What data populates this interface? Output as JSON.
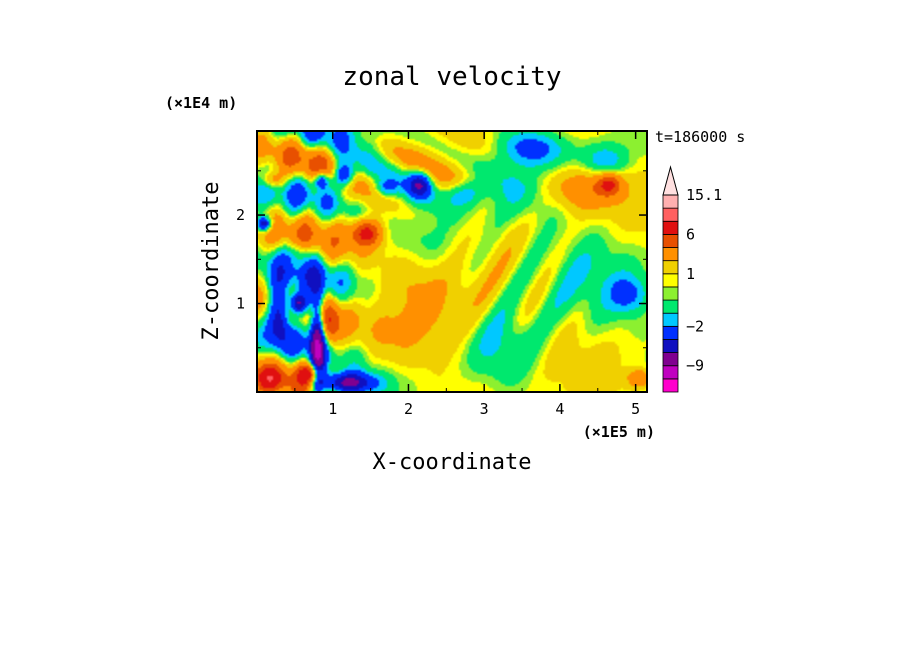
{
  "chart_data": {
    "type": "heatmap",
    "title": "zonal velocity",
    "xlabel": "X-coordinate",
    "ylabel": "Z-coordinate",
    "x_unit": "(×1E5 m)",
    "y_unit": "(×1E4 m)",
    "timestamp": "t=186000 s",
    "xlim": [
      0,
      5.15
    ],
    "ylim": [
      0,
      2.95
    ],
    "x_ticks": [
      {
        "value": 1,
        "label": "1"
      },
      {
        "value": 2,
        "label": "2"
      },
      {
        "value": 3,
        "label": "3"
      },
      {
        "value": 4,
        "label": "4"
      },
      {
        "value": 5,
        "label": "5"
      }
    ],
    "y_ticks": [
      {
        "value": 1,
        "label": "1"
      },
      {
        "value": 2,
        "label": "2"
      }
    ],
    "colorbar": {
      "levels": [
        -15.1,
        -12,
        -9,
        -6,
        -4,
        -2,
        -1,
        0,
        0.5,
        1,
        2,
        4,
        6,
        9,
        12,
        15.1
      ],
      "colors": [
        "#ff00cc",
        "#c000c0",
        "#800090",
        "#1010c0",
        "#0030ff",
        "#00c8ff",
        "#00e86e",
        "#8cf030",
        "#ffff00",
        "#f0d000",
        "#ff9000",
        "#e85000",
        "#e01010",
        "#ff6060",
        "#ffb0b0",
        "#ffe0e0"
      ],
      "extend_max": true,
      "tick_labels": [
        {
          "value": 15.1,
          "label": "15.1"
        },
        {
          "value": 6,
          "label": "6"
        },
        {
          "value": 1,
          "label": "1"
        },
        {
          "value": -2,
          "label": "−2"
        },
        {
          "value": -9,
          "label": "−9"
        }
      ]
    },
    "features": [
      {
        "x": 0.8,
        "z": 0.6,
        "sx": 0.1,
        "sz": 0.55,
        "v": -10
      },
      {
        "x": 0.55,
        "z": 1.0,
        "sx": 0.12,
        "sz": 0.12,
        "v": -8
      },
      {
        "x": 0.3,
        "z": 0.9,
        "sx": 0.14,
        "sz": 0.35,
        "v": -7
      },
      {
        "x": 0.1,
        "z": 1.9,
        "sx": 0.1,
        "sz": 0.08,
        "v": -7
      },
      {
        "x": 1.15,
        "z": 0.1,
        "sx": 0.4,
        "sz": 0.12,
        "v": -8
      },
      {
        "x": 0.7,
        "z": 0.2,
        "sx": 0.15,
        "sz": 0.12,
        "v": 6
      },
      {
        "x": 0.95,
        "z": 0.75,
        "sx": 0.15,
        "sz": 0.3,
        "v": 5
      },
      {
        "x": 1.45,
        "z": 1.8,
        "sx": 0.2,
        "sz": 0.15,
        "v": 6
      },
      {
        "x": 1.15,
        "z": 2.45,
        "sx": 0.15,
        "sz": 0.15,
        "v": -7
      },
      {
        "x": 0.85,
        "z": 2.4,
        "sx": 0.1,
        "sz": 0.1,
        "v": -6
      },
      {
        "x": 2.15,
        "z": 2.35,
        "sx": 0.15,
        "sz": 0.15,
        "v": -6
      },
      {
        "x": 1.7,
        "z": 2.3,
        "sx": 0.15,
        "sz": 0.1,
        "v": -3
      },
      {
        "x": 2.75,
        "z": 2.25,
        "sx": 0.25,
        "sz": 0.15,
        "v": -3
      },
      {
        "x": 3.6,
        "z": 2.75,
        "sx": 0.45,
        "sz": 0.2,
        "v": -3
      },
      {
        "x": 4.6,
        "z": 2.6,
        "sx": 0.3,
        "sz": 0.2,
        "v": -3
      },
      {
        "x": 4.9,
        "z": 1.1,
        "sx": 0.25,
        "sz": 0.2,
        "v": -2.5
      },
      {
        "x": 3.3,
        "z": 2.2,
        "sx": 0.35,
        "sz": 0.3,
        "v": -1.3
      },
      {
        "x": 4.0,
        "z": 1.3,
        "sx": 0.9,
        "sz": 0.55,
        "v": -1.2
      },
      {
        "x": 3.2,
        "z": 0.5,
        "sx": 0.4,
        "sz": 0.4,
        "v": -1.3
      },
      {
        "x": 4.3,
        "z": 2.3,
        "sx": 0.45,
        "sz": 0.25,
        "v": 3
      },
      {
        "x": 4.65,
        "z": 2.35,
        "sx": 0.15,
        "sz": 0.12,
        "v": 5
      },
      {
        "x": 5.05,
        "z": 0.15,
        "sx": 0.15,
        "sz": 0.1,
        "v": 3.5
      },
      {
        "x": 2.6,
        "z": 1.0,
        "sx": 0.6,
        "sz": 0.5,
        "v": 1.5
      },
      {
        "x": 2.0,
        "z": 1.3,
        "sx": 0.3,
        "sz": 0.25,
        "v": 0.8
      },
      {
        "x": 1.7,
        "z": 0.5,
        "sx": 0.5,
        "sz": 0.3,
        "v": 0.7
      },
      {
        "x": 0.15,
        "z": 0.15,
        "sx": 0.2,
        "sz": 0.15,
        "v": 5
      },
      {
        "x": 0.2,
        "z": 2.4,
        "sx": 0.15,
        "sz": 0.1,
        "v": 3.5
      },
      {
        "x": 0.55,
        "z": 1.6,
        "sx": 0.15,
        "sz": 0.12,
        "v": -2
      }
    ]
  }
}
